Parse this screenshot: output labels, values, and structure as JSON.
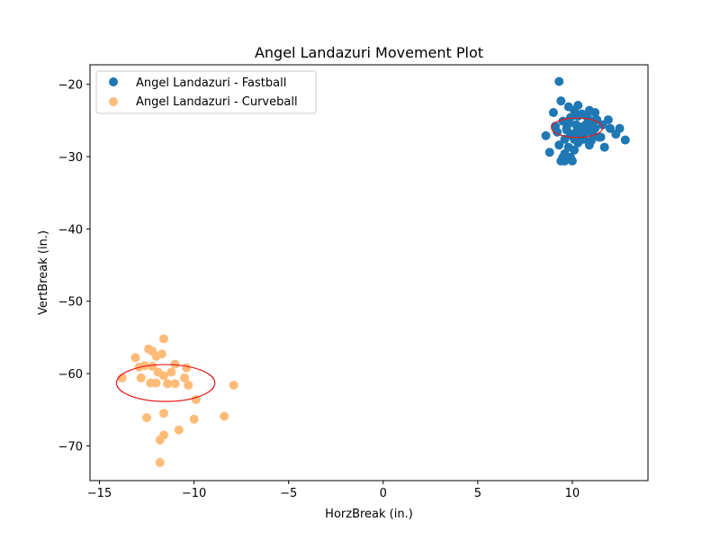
{
  "chart_data": {
    "type": "scatter",
    "title": "Angel Landazuri Movement Plot",
    "xlabel": "HorzBreak (in.)",
    "ylabel": "VertBreak (in.)",
    "xlim": [
      -15.5,
      14.0
    ],
    "ylim": [
      -74.8,
      -17.3
    ],
    "xticks": [
      -15,
      -10,
      -5,
      0,
      5,
      10
    ],
    "yticks": [
      -70,
      -60,
      -50,
      -40,
      -30,
      -20
    ],
    "grid": false,
    "legend_position": "upper-left",
    "series": [
      {
        "name": "Angel Landazuri - Fastball",
        "color": "#1f77b4",
        "x": [
          9.3,
          9.4,
          9.0,
          10.3,
          10.1,
          9.8,
          10.9,
          11.2,
          11.9,
          9.1,
          9.5,
          9.9,
          10.5,
          10.8,
          11.3,
          11.6,
          12.0,
          12.5,
          12.3,
          8.6,
          9.2,
          9.7,
          10.2,
          10.7,
          11.1,
          11.5,
          9.6,
          10.0,
          10.4,
          10.6,
          11.0,
          11.4,
          9.3,
          9.8,
          10.3,
          10.9,
          12.8,
          11.7,
          10.1,
          9.6,
          8.8,
          9.5,
          9.9,
          9.6,
          10.0,
          9.4,
          10.8,
          11.2,
          10.5,
          9.8,
          9.7,
          10.2,
          10.6,
          11.1,
          10.4,
          9.9,
          10.7,
          10.3,
          11.0,
          10.1
        ],
        "y": [
          -19.6,
          -22.3,
          -23.9,
          -22.9,
          -23.6,
          -23.1,
          -23.6,
          -23.9,
          -24.9,
          -25.8,
          -25.1,
          -24.6,
          -24.1,
          -24.6,
          -24.9,
          -25.6,
          -26.1,
          -26.1,
          -26.9,
          -27.1,
          -26.6,
          -26.1,
          -25.6,
          -26.6,
          -27.1,
          -27.3,
          -27.6,
          -27.1,
          -26.9,
          -27.6,
          -27.8,
          -27.3,
          -28.4,
          -28.7,
          -28.1,
          -28.4,
          -27.7,
          -28.7,
          -29.1,
          -29.6,
          -29.4,
          -30.1,
          -30.1,
          -30.6,
          -30.6,
          -30.6,
          -25.6,
          -26.1,
          -25.9,
          -25.4,
          -26.3,
          -26.6,
          -26.1,
          -25.1,
          -27.1,
          -26.9,
          -25.6,
          -24.4,
          -26.6,
          -27.6
        ]
      },
      {
        "name": "Angel Landazuri - Curveball",
        "color": "#ffbb78",
        "x": [
          -11.6,
          -12.4,
          -12.2,
          -11.7,
          -12.0,
          -13.1,
          -12.6,
          -12.9,
          -12.2,
          -11.0,
          -10.4,
          -13.8,
          -12.8,
          -11.9,
          -11.6,
          -11.2,
          -10.5,
          -12.3,
          -12.0,
          -11.4,
          -11.0,
          -10.3,
          -9.9,
          -7.9,
          -11.6,
          -12.5,
          -10.0,
          -8.4,
          -10.8,
          -11.6,
          -11.8,
          -11.8
        ],
        "y": [
          -55.2,
          -56.6,
          -56.9,
          -57.3,
          -57.6,
          -57.8,
          -58.9,
          -59.1,
          -59.0,
          -58.7,
          -59.2,
          -60.6,
          -60.6,
          -59.8,
          -60.3,
          -59.8,
          -60.6,
          -61.3,
          -61.3,
          -61.4,
          -61.4,
          -61.6,
          -63.6,
          -61.6,
          -65.5,
          -66.1,
          -66.3,
          -65.9,
          -67.8,
          -68.5,
          -69.2,
          -72.3
        ]
      }
    ],
    "ellipses": [
      {
        "series": "Angel Landazuri - Fastball",
        "cx": 10.25,
        "cy": -26.0,
        "rx": 1.35,
        "ry": 1.35,
        "color": "#e41a1c"
      },
      {
        "series": "Angel Landazuri - Curveball",
        "cx": -11.5,
        "cy": -61.3,
        "rx": 2.6,
        "ry": 2.55,
        "color": "#e41a1c"
      }
    ]
  }
}
